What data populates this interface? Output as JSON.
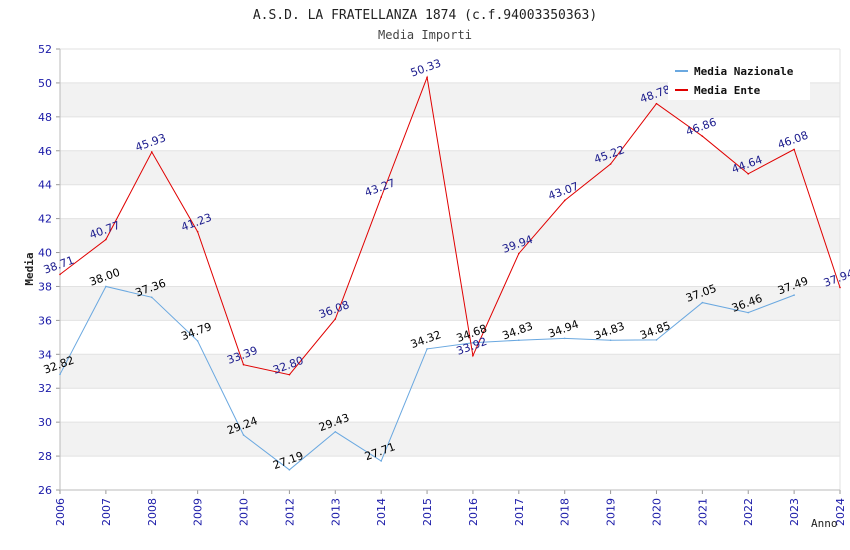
{
  "chart_data": {
    "type": "line",
    "title": "A.S.D. LA FRATELLANZA 1874 (c.f.94003350363)",
    "subtitle": "Media Importi",
    "xlabel": "Anno",
    "ylabel": "Media",
    "ylim": [
      26,
      52
    ],
    "y_ticks": [
      "26",
      "28",
      "30",
      "32",
      "34",
      "36",
      "38",
      "40",
      "42",
      "44",
      "46",
      "48",
      "50",
      "52"
    ],
    "categories": [
      "2006",
      "2007",
      "2008",
      "2009",
      "2010",
      "2012",
      "2013",
      "2014",
      "2015",
      "2016",
      "2017",
      "2018",
      "2019",
      "2020",
      "2021",
      "2022",
      "2023",
      "2024"
    ],
    "grid": true,
    "legend_position": "top-right",
    "series": [
      {
        "name": "Media Nazionale",
        "color": "#6aa8e0",
        "label_color": "#000000",
        "values": [
          32.82,
          38.0,
          37.36,
          34.79,
          29.24,
          27.19,
          29.43,
          27.71,
          34.32,
          34.68,
          34.83,
          34.94,
          34.83,
          34.85,
          37.05,
          36.46,
          37.49,
          null
        ],
        "labels": [
          "32.82",
          "38.00",
          "37.36",
          "34.79",
          "29.24",
          "27.19",
          "29.43",
          "27.71",
          "34.32",
          "34.68",
          "34.83",
          "34.94",
          "34.83",
          "34.85",
          "37.05",
          "36.46",
          "37.49",
          ""
        ]
      },
      {
        "name": "Media Ente",
        "color": "#e00000",
        "label_color": "#1a1a8c",
        "values": [
          38.71,
          40.77,
          45.93,
          41.23,
          33.39,
          32.8,
          36.08,
          43.27,
          50.33,
          33.92,
          39.94,
          43.07,
          45.22,
          48.78,
          46.86,
          44.64,
          46.08,
          37.94
        ],
        "labels": [
          "38.71",
          "40.77",
          "45.93",
          "41.23",
          "33.39",
          "32.80",
          "36.08",
          "43.27",
          "50.33",
          "33.92",
          "39.94",
          "43.07",
          "45.22",
          "48.78",
          "46.86",
          "44.64",
          "46.08",
          "37.94"
        ]
      }
    ]
  }
}
